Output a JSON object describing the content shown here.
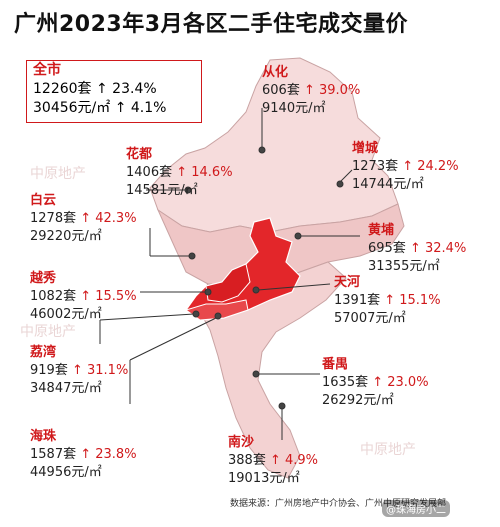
{
  "title": "广州2023年3月各区二手住宅成交量价",
  "whole_city": {
    "name": "全市",
    "sets": "12260套",
    "sets_change": "↑ 23.4%",
    "price": "30456元/㎡",
    "price_change": "↑ 4.1%"
  },
  "districts": [
    {
      "key": "conghua",
      "name": "从化",
      "sets": "606套",
      "sets_change": "↑ 39.0%",
      "price": "9140元/㎡"
    },
    {
      "key": "huadu",
      "name": "花都",
      "sets": "1406套",
      "sets_change": "↑ 14.6%",
      "price": "14581元/㎡"
    },
    {
      "key": "zengcheng",
      "name": "增城",
      "sets": "1273套",
      "sets_change": "↑ 24.2%",
      "price": "14744元/㎡"
    },
    {
      "key": "baiyun",
      "name": "白云",
      "sets": "1278套",
      "sets_change": "↑ 42.3%",
      "price": "29220元/㎡"
    },
    {
      "key": "huangpu",
      "name": "黄埔",
      "sets": "695套",
      "sets_change": "↑ 32.4%",
      "price": "31355元/㎡"
    },
    {
      "key": "yuexiu",
      "name": "越秀",
      "sets": "1082套",
      "sets_change": "↑ 15.5%",
      "price": "46002元/㎡"
    },
    {
      "key": "tianhe",
      "name": "天河",
      "sets": "1391套",
      "sets_change": "↑ 15.1%",
      "price": "57007元/㎡"
    },
    {
      "key": "liwan",
      "name": "荔湾",
      "sets": "919套",
      "sets_change": "↑ 31.1%",
      "price": "34847元/㎡"
    },
    {
      "key": "panyu",
      "name": "番禺",
      "sets": "1635套",
      "sets_change": "↑ 23.0%",
      "price": "26292元/㎡"
    },
    {
      "key": "haizhu",
      "name": "海珠",
      "sets": "1587套",
      "sets_change": "↑ 23.8%",
      "price": "44956元/㎡"
    },
    {
      "key": "nansha",
      "name": "南沙",
      "sets": "388套",
      "sets_change": "↑ 4.9%",
      "price": "19013元/㎡"
    }
  ],
  "source": "数据来源：广州房地产中介协会、广州中原研究发展部",
  "watermark": "@珠海房小二",
  "colors": {
    "accent": "#d0191b",
    "map_light": "#f6dcdc",
    "map_mid": "#eebcbc",
    "map_core": "#e3262a",
    "map_edge": "#c9a3a3"
  }
}
